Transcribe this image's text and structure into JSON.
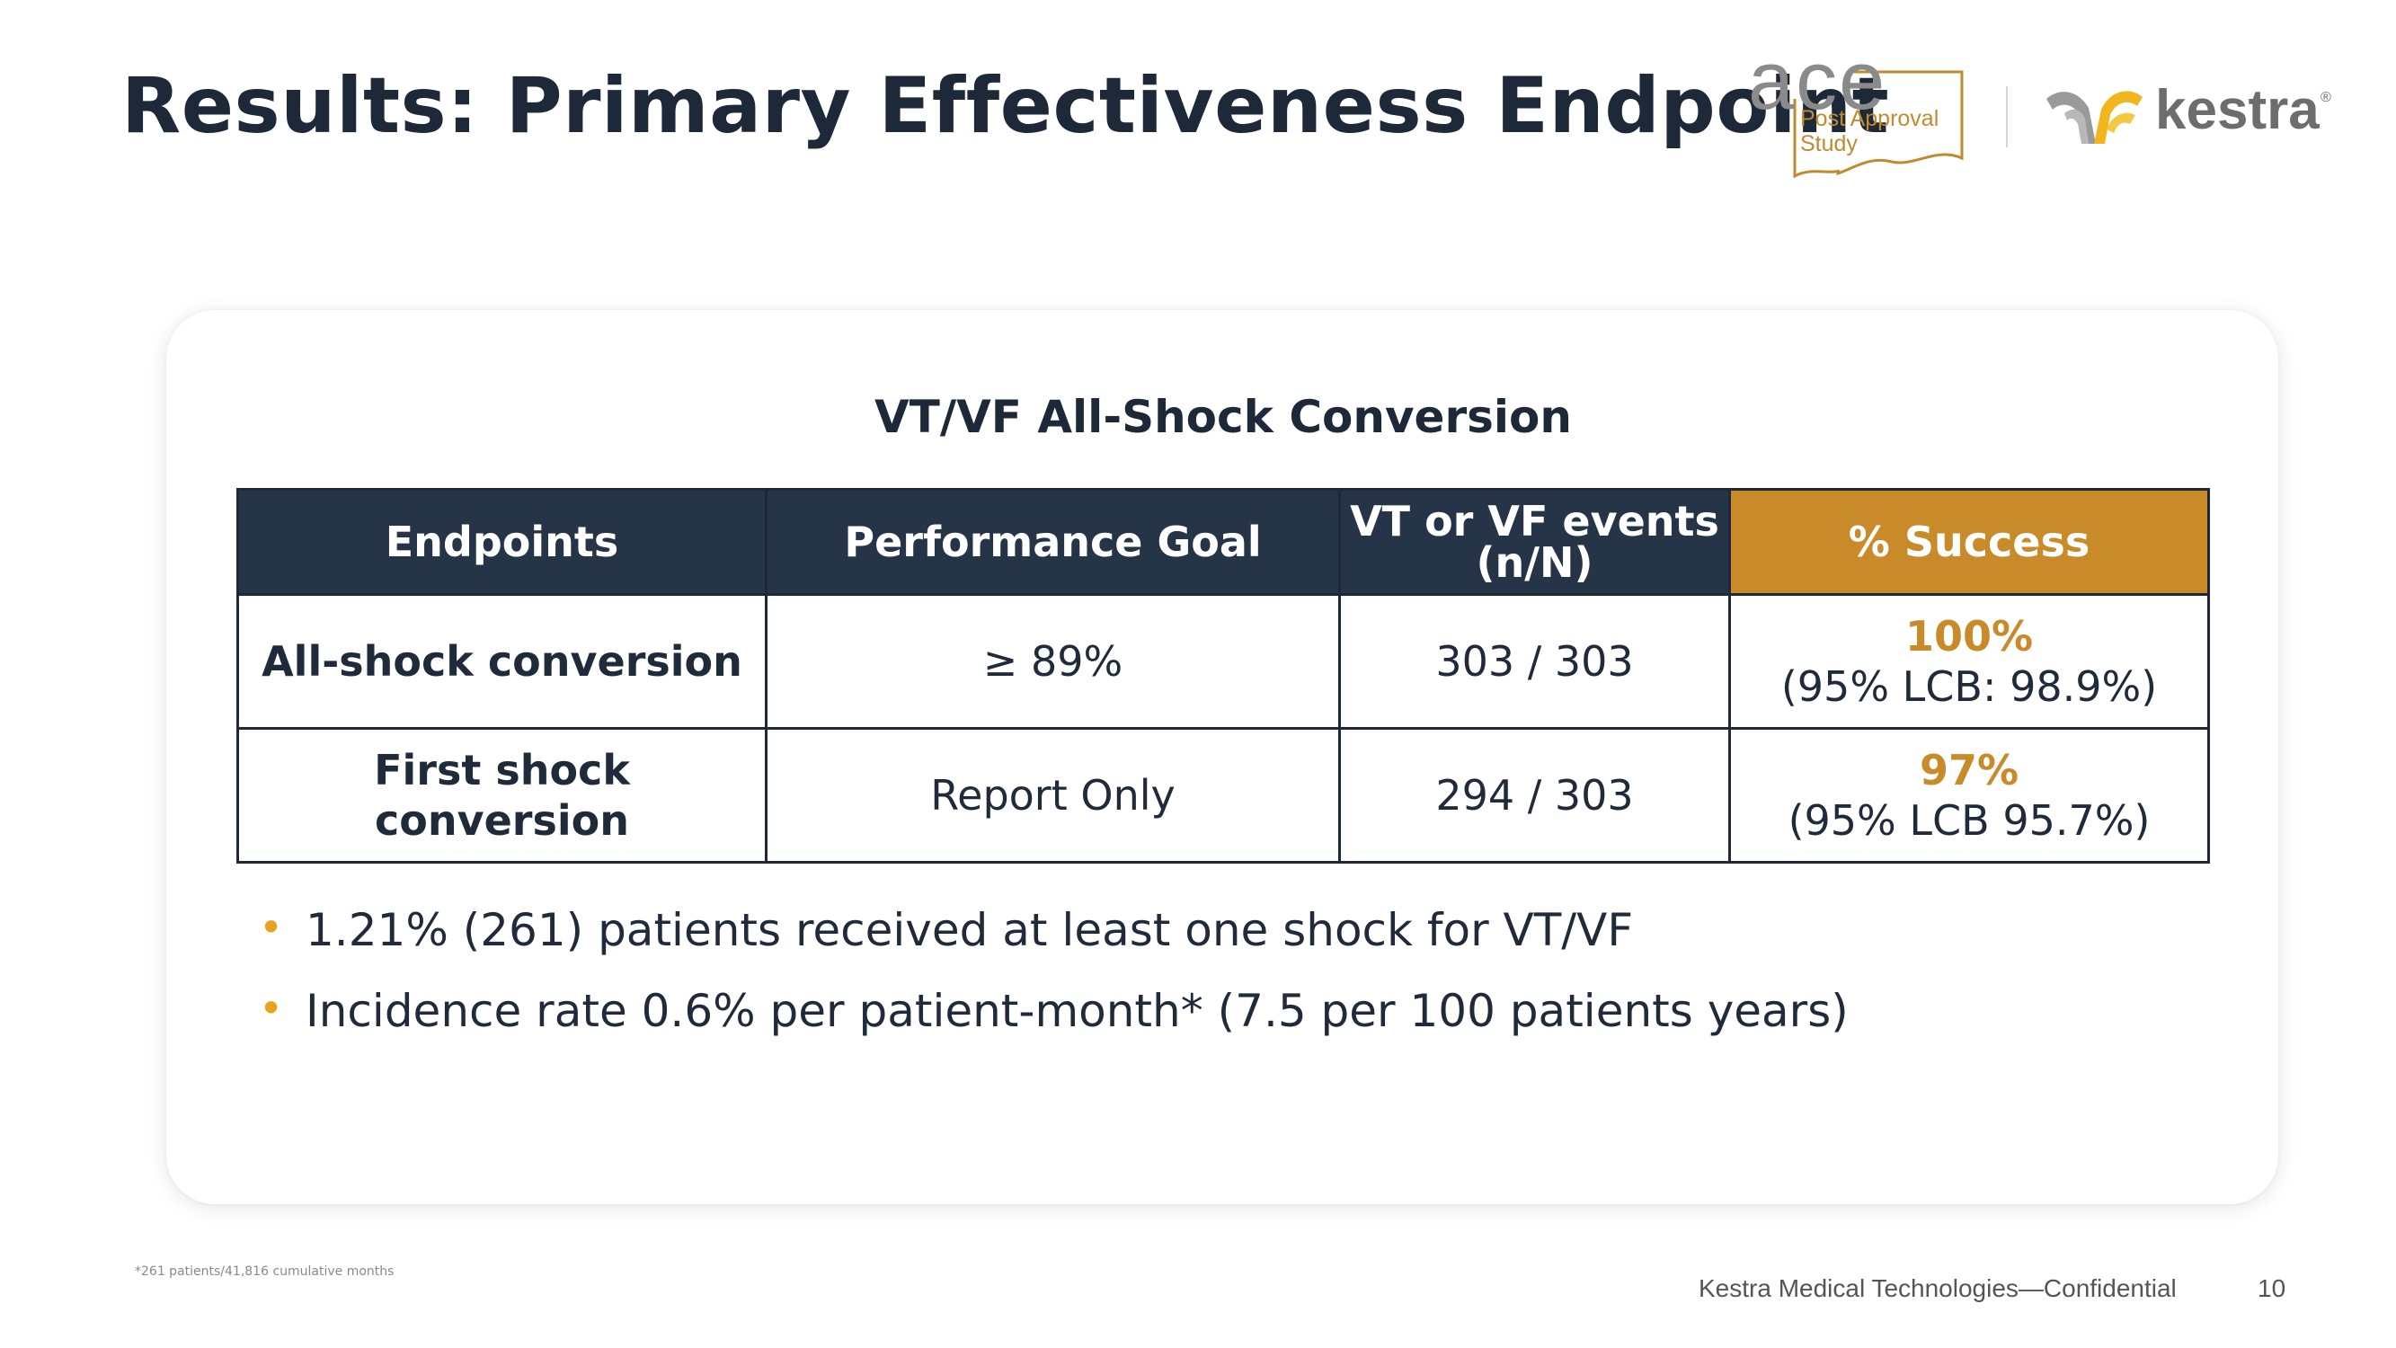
{
  "title": "Results: Primary Effectiveness Endpoint",
  "logos": {
    "ace_word": "ace",
    "ace_line1": "Post Approval",
    "ace_line2": "Study",
    "kestra_word": "kestra",
    "kestra_reg": "®"
  },
  "table": {
    "title": "VT/VF All-Shock Conversion",
    "headers": [
      "Endpoints",
      "Performance Goal",
      "VT or VF events (n/N)",
      "% Success"
    ],
    "rows": [
      {
        "endpoint": "All-shock conversion",
        "goal": "≥ 89%",
        "events": "303 / 303",
        "pct": "100%",
        "lcb": "(95% LCB: 98.9%)"
      },
      {
        "endpoint": "First shock conversion",
        "goal": "Report Only",
        "events": "294 / 303",
        "pct": "97%",
        "lcb": "(95% LCB 95.7%)"
      }
    ]
  },
  "bullets": [
    "1.21% (261) patients received at least one shock for VT/VF",
    "Incidence rate 0.6% per patient-month* (7.5 per 100 patients years)"
  ],
  "footnote": "*261 patients/41,816 cumulative months",
  "footer": {
    "confidential": "Kestra Medical Technologies—Confidential",
    "page": "10"
  },
  "colors": {
    "navy": "#253447",
    "gold": "#c98a2a",
    "bullet": "#e8a21c"
  }
}
